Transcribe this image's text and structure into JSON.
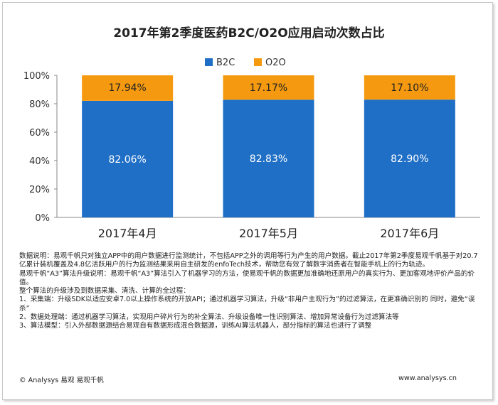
{
  "chart_data": {
    "type": "bar",
    "stacked": true,
    "title": "2017年第2季度医药B2C/O2O应用启动次数占比",
    "categories": [
      "2017年4月",
      "2017年5月",
      "2017年6月"
    ],
    "series": [
      {
        "name": "B2C",
        "values": [
          82.06,
          82.83,
          82.9
        ],
        "labels": [
          "82.06%",
          "82.83%",
          "82.90%"
        ],
        "color": "#1f6fc6"
      },
      {
        "name": "O2O",
        "values": [
          17.94,
          17.17,
          17.1
        ],
        "labels": [
          "17.94%",
          "17.17%",
          "17.10%"
        ],
        "color": "#f59a10"
      }
    ],
    "yticks": [
      "0%",
      "20%",
      "40%",
      "60%",
      "80%",
      "100%"
    ],
    "ylim": [
      0,
      100
    ],
    "legend_position": "top-center",
    "grid": false
  },
  "notes": [
    "数据说明：易观千帆只对独立APP中的用户数据进行监测统计，不包括APP之外的调用等行为产生的用户数据。截止2017年第2季度易观千帆基于对20.7亿累计装机覆盖及4.8亿活跃用户的行为监测结果采用自主研发的enfoTech技术，帮助您有效了解数字消费者在智能手机上的行为轨迹。",
    "易观千帆“A3”算法升级说明：易观千帆“A3”算法引入了机器学习的方法，使易观千帆的数据更加准确地还原用户的真实行为、更加客观地评价产品的价值。",
    "整个算法的升级涉及到数据采集、清洗、计算的全过程：",
    "1、采集端：升级SDK以适应安卓7.0以上操作系统的开放API；通过机器学习算法，升级“非用户主观行为”的过滤算法，在更准确识别的 同时，避免“误杀”",
    "2、数据处理端：通过机器学习算法，实现用户碎片行为的补全算法、升级设备唯一性识别算法、增加异常设备行为过滤算法等",
    "3、算法模型：引入外部数据源结合易观自有数据形成混合数据源，训练AI算法机器人，部分指标的算法也进行了调整"
  ],
  "footer": {
    "left": "© Analysys 易观 易观千帆",
    "right": "www.analysys.cn"
  }
}
